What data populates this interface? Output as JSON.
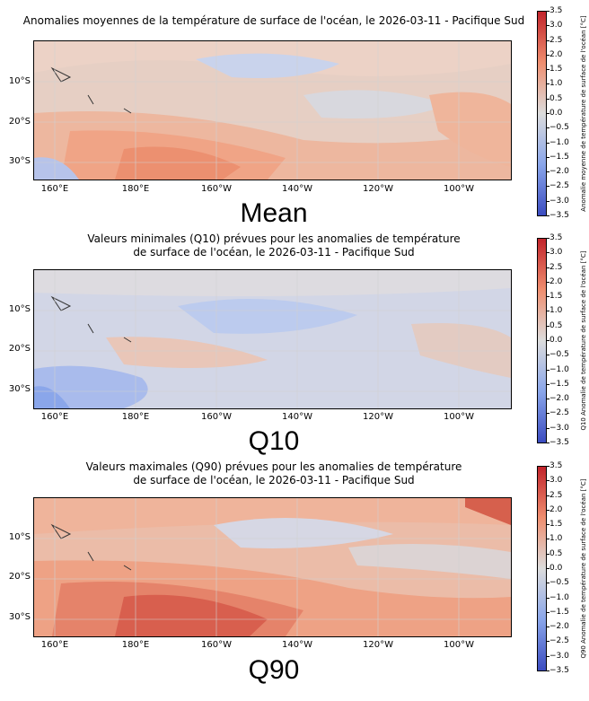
{
  "colorbar": {
    "ticks": [
      "3.5",
      "3.0",
      "2.5",
      "2.0",
      "1.5",
      "1.0",
      "0.5",
      "0.0",
      "−0.5",
      "−1.0",
      "−1.5",
      "−2.0",
      "−2.5",
      "−3.0",
      "−3.5"
    ],
    "range": [
      -3.5,
      3.5
    ],
    "colors": {
      "warm_max": "#c1242b",
      "warm_mid": "#ef8e6f",
      "neutral": "#dcdcdc",
      "cool_mid": "#8aa6ea",
      "cool_max": "#3b4cc0"
    }
  },
  "axes": {
    "lat_labels": [
      "10°S",
      "20°S",
      "30°S"
    ],
    "lon_labels": [
      "160°E",
      "180°E",
      "160°W",
      "140°W",
      "120°W",
      "100°W"
    ]
  },
  "panels": [
    {
      "id": "mean",
      "title": "Anomalies moyennes de la température de surface de l'océan, le 2026-03-11 - Pacifique Sud",
      "caption": "Mean",
      "colorbar_label": "Anomalie moyenne de température de surface de l'océan [°C]"
    },
    {
      "id": "q10",
      "title": "Valeurs minimales (Q10) prévues pour les anomalies de température\nde surface de l'océan, le 2026-03-11 - Pacifique Sud",
      "caption": "Q10",
      "colorbar_label": "Q10 Anomalie de température de surface de l'océan [°C]"
    },
    {
      "id": "q90",
      "title": "Valeurs maximales (Q90) prévues pour les anomalies de température\nde surface de l'océan, le 2026-03-11 - Pacifique Sud",
      "caption": "Q90",
      "colorbar_label": "Q90 Anomalie de température de surface de l'océan [°C]"
    }
  ]
}
